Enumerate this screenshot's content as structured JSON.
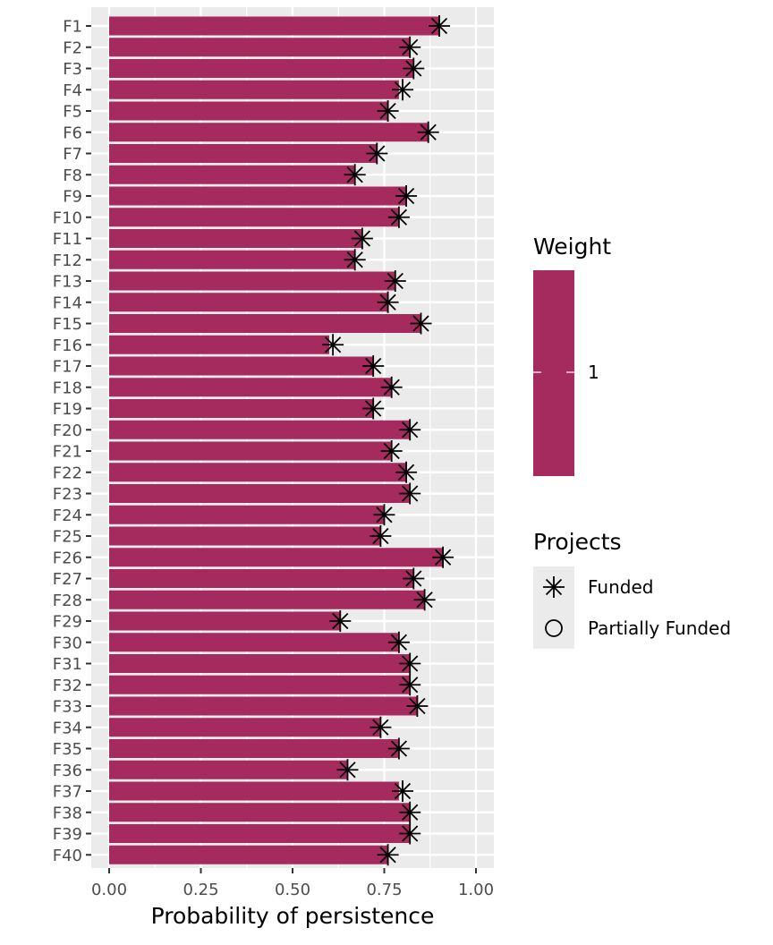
{
  "chart_data": {
    "type": "bar",
    "orientation": "horizontal",
    "categories": [
      "F1",
      "F2",
      "F3",
      "F4",
      "F5",
      "F6",
      "F7",
      "F8",
      "F9",
      "F10",
      "F11",
      "F12",
      "F13",
      "F14",
      "F15",
      "F16",
      "F17",
      "F18",
      "F19",
      "F20",
      "F21",
      "F22",
      "F23",
      "F24",
      "F25",
      "F26",
      "F27",
      "F28",
      "F29",
      "F30",
      "F31",
      "F32",
      "F33",
      "F34",
      "F35",
      "F36",
      "F37",
      "F38",
      "F39",
      "F40"
    ],
    "values": [
      0.9,
      0.82,
      0.83,
      0.79,
      0.76,
      0.87,
      0.73,
      0.67,
      0.81,
      0.79,
      0.69,
      0.67,
      0.78,
      0.76,
      0.85,
      0.6,
      0.72,
      0.77,
      0.72,
      0.82,
      0.77,
      0.81,
      0.82,
      0.75,
      0.74,
      0.91,
      0.83,
      0.86,
      0.63,
      0.79,
      0.82,
      0.82,
      0.84,
      0.74,
      0.79,
      0.65,
      0.79,
      0.82,
      0.82,
      0.76
    ],
    "series": [
      {
        "name": "1",
        "kind": "bar",
        "color": "#A52A5E"
      },
      {
        "name": "Funded",
        "kind": "point",
        "shape": "asterisk",
        "values": [
          0.9,
          0.82,
          0.83,
          0.8,
          0.76,
          0.87,
          0.73,
          0.67,
          0.81,
          0.79,
          0.69,
          0.67,
          0.78,
          0.76,
          0.85,
          0.61,
          0.72,
          0.77,
          0.72,
          0.82,
          0.77,
          0.81,
          0.82,
          0.75,
          0.74,
          0.91,
          0.83,
          0.86,
          0.63,
          0.79,
          0.82,
          0.82,
          0.84,
          0.74,
          0.79,
          0.65,
          0.8,
          0.82,
          0.82,
          0.76
        ]
      }
    ],
    "xlabel": "Probability of persistence",
    "ylabel": "",
    "xlim": [
      0,
      1.05
    ],
    "xticks": [
      0,
      0.25,
      0.5,
      0.75,
      1
    ],
    "xtick_labels": [
      "0.00",
      "0.25",
      "0.50",
      "0.75",
      "1.00"
    ],
    "grid": true,
    "legend_position": "right",
    "legends": {
      "weight": {
        "title": "Weight",
        "label": "1"
      },
      "projects": {
        "title": "Projects",
        "items": [
          {
            "label": "Funded",
            "shape": "asterisk"
          },
          {
            "label": "Partially Funded",
            "shape": "circle"
          }
        ]
      }
    },
    "colors": {
      "bar": "#A52A5E",
      "panel": "#EBEBEB",
      "grid": "#FFFFFF",
      "marker": "#000000"
    }
  }
}
